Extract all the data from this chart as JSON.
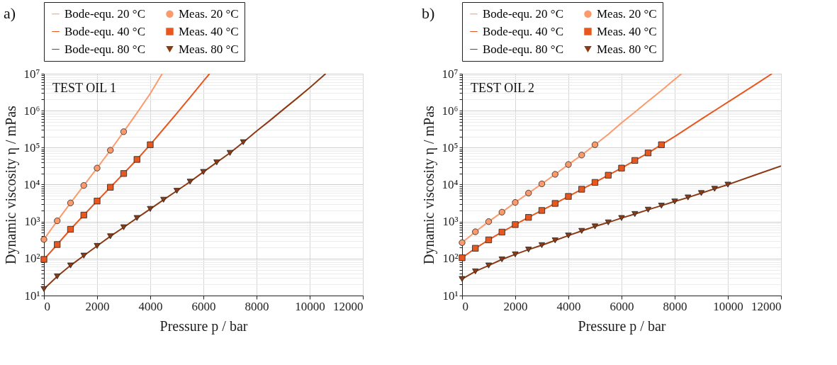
{
  "chart_data": [
    {
      "type": "line",
      "title": "a)",
      "annotations": [
        "TEST OIL 1"
      ],
      "xlabel": "Pressure  p / bar",
      "ylabel": "Dynamic viscosity  η / mPas",
      "xlim": [
        0,
        12000
      ],
      "xticks": [
        0,
        2000,
        4000,
        6000,
        8000,
        10000,
        12000
      ],
      "ylim": [
        10,
        10000000
      ],
      "log": "y",
      "grid": true,
      "legend": "top",
      "yticks": [
        {
          "value": 10,
          "label": "10¹"
        },
        {
          "value": 100,
          "label": "10²"
        },
        {
          "value": 1000,
          "label": "10³"
        },
        {
          "value": 10000,
          "label": "10⁴"
        },
        {
          "value": 100000,
          "label": "10⁵"
        },
        {
          "value": 1000000,
          "label": "10⁶"
        },
        {
          "value": 10000000,
          "label": "10⁷"
        }
      ],
      "series": [
        {
          "name": "Bode-equ. 20 °C",
          "type": "line",
          "color": "#fc9a6c",
          "x": [
            0,
            500,
            1000,
            1500,
            2000,
            2500,
            3000,
            3500,
            4000,
            4450
          ],
          "values": [
            330,
            1050,
            3200,
            9500,
            28000,
            85000,
            270000,
            870000,
            2900000,
            10000000
          ]
        },
        {
          "name": "Meas. 20 °C",
          "type": "scatter",
          "marker": "circle",
          "color": "#fc9a6c",
          "x": [
            0,
            500,
            1000,
            1500,
            2000,
            2500,
            3000
          ],
          "values": [
            330,
            1050,
            3200,
            9500,
            28000,
            85000,
            270000
          ]
        },
        {
          "name": "Bode-equ. 40 °C",
          "type": "line",
          "color": "#e8571e",
          "x": [
            0,
            500,
            1000,
            1500,
            2000,
            2500,
            3000,
            3500,
            4000,
            4500,
            5000,
            5500,
            6000,
            6230
          ],
          "values": [
            95,
            240,
            620,
            1500,
            3600,
            8500,
            20000,
            48000,
            120000,
            320000,
            850000,
            2300000,
            6300000,
            10000000
          ]
        },
        {
          "name": "Meas. 40 °C",
          "type": "scatter",
          "marker": "square",
          "color": "#e8571e",
          "x": [
            0,
            500,
            1000,
            1500,
            2000,
            2500,
            3000,
            3500,
            4000
          ],
          "values": [
            95,
            240,
            620,
            1500,
            3600,
            8500,
            20000,
            48000,
            120000
          ]
        },
        {
          "name": "Bode-equ. 80 °C",
          "type": "line",
          "color": "#8b3a14",
          "x": [
            0,
            500,
            1000,
            1500,
            2000,
            2500,
            3000,
            3500,
            4000,
            4500,
            5000,
            5500,
            6000,
            6500,
            7000,
            7500,
            8000,
            8500,
            9000,
            9500,
            10000,
            10600
          ],
          "values": [
            15,
            33,
            65,
            120,
            220,
            400,
            700,
            1250,
            2200,
            3900,
            6800,
            12000,
            22000,
            40000,
            72000,
            140000,
            280000,
            540000,
            1070000,
            2100000,
            4200000,
            10000000
          ]
        },
        {
          "name": "Meas. 80 °C",
          "type": "scatter",
          "marker": "triangle",
          "color": "#8b3a14",
          "x": [
            0,
            500,
            1000,
            1500,
            2000,
            2500,
            3000,
            3500,
            4000,
            4500,
            5000,
            5500,
            6000,
            6500,
            7000,
            7500
          ],
          "values": [
            15,
            33,
            65,
            120,
            220,
            400,
            700,
            1250,
            2200,
            3900,
            6800,
            12000,
            22000,
            40000,
            72000,
            140000
          ]
        }
      ]
    },
    {
      "type": "line",
      "title": "b)",
      "annotations": [
        "TEST OIL 2"
      ],
      "xlabel": "Pressure  p / bar",
      "ylabel": "Dynamic viscosity  η / mPas",
      "xlim": [
        0,
        12000
      ],
      "xticks": [
        0,
        2000,
        4000,
        6000,
        8000,
        10000,
        12000
      ],
      "ylim": [
        10,
        10000000
      ],
      "log": "y",
      "grid": true,
      "legend": "top",
      "yticks": [
        {
          "value": 10,
          "label": "10¹"
        },
        {
          "value": 100,
          "label": "10²"
        },
        {
          "value": 1000,
          "label": "10³"
        },
        {
          "value": 10000,
          "label": "10⁴"
        },
        {
          "value": 100000,
          "label": "10⁵"
        },
        {
          "value": 1000000,
          "label": "10⁶"
        },
        {
          "value": 10000000,
          "label": "10⁷"
        }
      ],
      "series": [
        {
          "name": "Bode-equ. 20 °C",
          "type": "line",
          "color": "#fc9a6c",
          "x": [
            0,
            500,
            1000,
            1500,
            2000,
            2500,
            3000,
            3500,
            4000,
            4500,
            5000,
            5500,
            6000,
            6500,
            7000,
            7500,
            8000,
            8260
          ],
          "values": [
            270,
            530,
            1000,
            1800,
            3300,
            5900,
            10500,
            19000,
            35000,
            63000,
            120000,
            230000,
            470000,
            910000,
            1800000,
            3500000,
            7000000,
            10000000
          ]
        },
        {
          "name": "Meas. 20 °C",
          "type": "scatter",
          "marker": "circle",
          "color": "#fc9a6c",
          "x": [
            0,
            500,
            1000,
            1500,
            2000,
            2500,
            3000,
            3500,
            4000,
            4500,
            5000
          ],
          "values": [
            270,
            530,
            1000,
            1800,
            3300,
            5900,
            10500,
            19000,
            35000,
            63000,
            120000
          ]
        },
        {
          "name": "Bode-equ. 40 °C",
          "type": "line",
          "color": "#e8571e",
          "x": [
            0,
            500,
            1000,
            1500,
            2000,
            2500,
            3000,
            3500,
            4000,
            4500,
            5000,
            5500,
            6000,
            6500,
            7000,
            7500,
            8000,
            9000,
            10000,
            11000,
            11660
          ],
          "values": [
            105,
            190,
            320,
            520,
            830,
            1300,
            2000,
            3100,
            4800,
            7500,
            11500,
            18000,
            28000,
            45000,
            72000,
            120000,
            200000,
            590000,
            1700000,
            4900000,
            10000000
          ]
        },
        {
          "name": "Meas. 40 °C",
          "type": "scatter",
          "marker": "square",
          "color": "#e8571e",
          "x": [
            0,
            500,
            1000,
            1500,
            2000,
            2500,
            3000,
            3500,
            4000,
            4500,
            5000,
            5500,
            6000,
            6500,
            7000,
            7500
          ],
          "values": [
            105,
            190,
            320,
            520,
            830,
            1300,
            2000,
            3100,
            4800,
            7500,
            11500,
            18000,
            28000,
            45000,
            72000,
            120000
          ]
        },
        {
          "name": "Bode-equ. 80 °C",
          "type": "line",
          "color": "#8b3a14",
          "x": [
            0,
            500,
            1000,
            1500,
            2000,
            2500,
            3000,
            3500,
            4000,
            4500,
            5000,
            5500,
            6000,
            6500,
            7000,
            7500,
            8000,
            8500,
            9000,
            9500,
            10000,
            11000,
            12000
          ],
          "values": [
            28,
            45,
            65,
            95,
            130,
            175,
            230,
            310,
            420,
            560,
            740,
            950,
            1250,
            1600,
            2100,
            2700,
            3500,
            4500,
            5900,
            7700,
            10000,
            18000,
            32000
          ]
        },
        {
          "name": "Meas. 80 °C",
          "type": "scatter",
          "marker": "triangle",
          "color": "#8b3a14",
          "x": [
            0,
            500,
            1000,
            1500,
            2000,
            2500,
            3000,
            3500,
            4000,
            4500,
            5000,
            5500,
            6000,
            6500,
            7000,
            7500,
            8000,
            8500,
            9000,
            9500,
            10000
          ],
          "values": [
            28,
            45,
            65,
            95,
            130,
            175,
            230,
            310,
            420,
            560,
            740,
            950,
            1250,
            1600,
            2100,
            2700,
            3500,
            4500,
            5900,
            7700,
            10000
          ]
        }
      ]
    }
  ]
}
